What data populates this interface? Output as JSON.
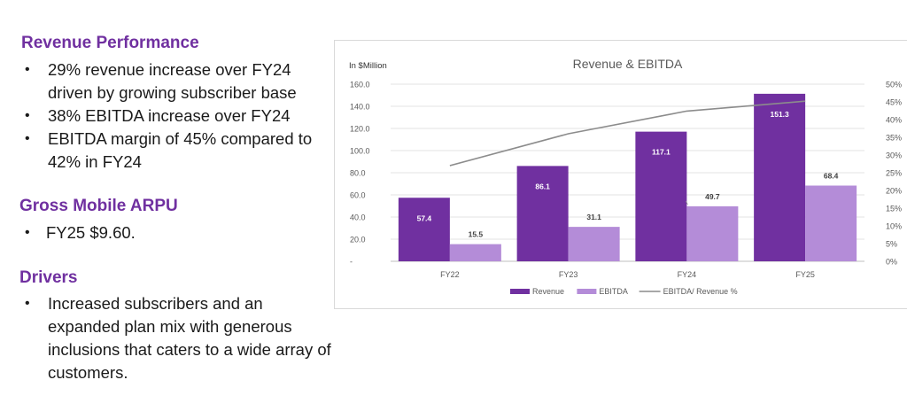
{
  "text": {
    "revenue_title": "Revenue Performance",
    "revenue_bullets": [
      "29% revenue increase over FY24 driven by growing subscriber base",
      "38% EBITDA increase over FY24",
      "EBITDA margin of 45% compared to 42% in FY24"
    ],
    "arpu_title": "Gross Mobile ARPU",
    "arpu_bullets": [
      "FY25 $9.60."
    ],
    "drivers_title": "Drivers",
    "drivers_bullets": [
      "Increased subscribers and an expanded plan mix with generous inclusions that caters to a wide array of customers."
    ],
    "bullet_char": "•"
  },
  "chart_data": {
    "type": "bar",
    "title": "Revenue & EBITDA",
    "y_unit_label": "In $Million",
    "categories": [
      "FY22",
      "FY23",
      "FY24",
      "FY25"
    ],
    "ylim": [
      0,
      160
    ],
    "y_ticks": [
      "-",
      "20.0",
      "40.0",
      "60.0",
      "80.0",
      "100.0",
      "120.0",
      "140.0",
      "160.0"
    ],
    "y2lim": [
      0,
      50
    ],
    "y2_ticks": [
      "0%",
      "5%",
      "10%",
      "15%",
      "20%",
      "25%",
      "30%",
      "35%",
      "40%",
      "45%",
      "50%"
    ],
    "grid": true,
    "legend_position": "bottom",
    "series": [
      {
        "name": "Revenue",
        "kind": "bar",
        "color": "#7030a0",
        "values": [
          57.4,
          86.1,
          117.1,
          151.3
        ],
        "labels": [
          "57.4",
          "86.1",
          "117.1",
          "151.3"
        ]
      },
      {
        "name": "EBITDA",
        "kind": "bar",
        "color": "#b48cd8",
        "values": [
          15.5,
          31.1,
          49.7,
          68.4
        ],
        "labels": [
          "15.5",
          "31.1",
          "49.7",
          "68.4"
        ]
      },
      {
        "name": "EBITDA/ Revenue %",
        "kind": "line",
        "axis": "secondary",
        "color": "#8c8c8c",
        "values": [
          27,
          36,
          42.4,
          45.2
        ]
      }
    ]
  }
}
